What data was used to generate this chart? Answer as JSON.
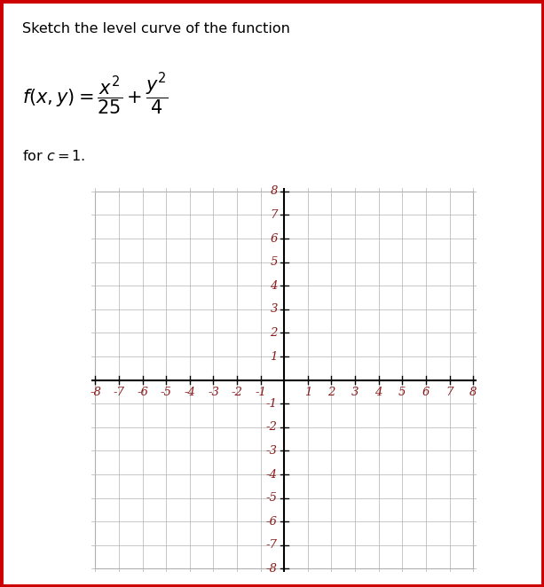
{
  "title_text": "Sketch the level curve of the function",
  "for_c_text": "for $c = 1.$",
  "x_min": -8,
  "x_max": 8,
  "y_min": -8,
  "y_max": 8,
  "grid_color": "#b0b0b0",
  "axis_color": "#000000",
  "tick_label_color": "#8B1A1A",
  "background_color": "#ffffff",
  "border_color": "#cc0000",
  "text_color": "#000000",
  "title_fontsize": 11.5,
  "formula_fontsize": 15,
  "for_c_fontsize": 11.5,
  "tick_fontsize": 9.5,
  "border_linewidth": 5
}
